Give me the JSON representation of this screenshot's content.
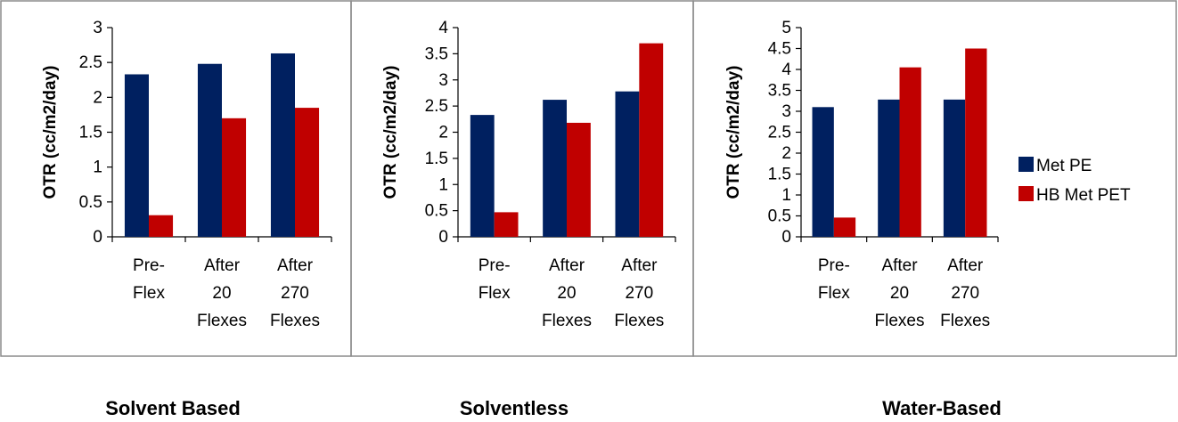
{
  "legend": [
    {
      "name": "Met PE",
      "color": "#002060"
    },
    {
      "name": "HB Met PET",
      "color": "#c00000"
    }
  ],
  "captions": [
    "Solvent Based",
    "Solventless",
    "Water-Based"
  ],
  "chart_data": [
    {
      "type": "bar",
      "title": "",
      "caption": "Solvent Based",
      "xlabel": "",
      "ylabel": "OTR (cc/m2/day)",
      "ylim": [
        0,
        3
      ],
      "yticks": [
        "0",
        "0.5",
        "1",
        "1.5",
        "2",
        "2.5",
        "3"
      ],
      "categories": [
        [
          "Pre-",
          "Flex"
        ],
        [
          "After",
          "20",
          "Flexes"
        ],
        [
          "After",
          "270",
          "Flexes"
        ]
      ],
      "series": [
        {
          "name": "Met PE",
          "color": "#002060",
          "values": [
            2.33,
            2.48,
            2.63
          ]
        },
        {
          "name": "HB Met PET",
          "color": "#c00000",
          "values": [
            0.31,
            1.7,
            1.85
          ]
        }
      ]
    },
    {
      "type": "bar",
      "title": "",
      "caption": "Solventless",
      "xlabel": "",
      "ylabel": "OTR (cc/m2/day)",
      "ylim": [
        0,
        4
      ],
      "yticks": [
        "0",
        "0.5",
        "1",
        "1.5",
        "2",
        "2.5",
        "3",
        "3.5",
        "4"
      ],
      "categories": [
        [
          "Pre-",
          "Flex"
        ],
        [
          "After",
          "20",
          "Flexes"
        ],
        [
          "After",
          "270",
          "Flexes"
        ]
      ],
      "series": [
        {
          "name": "Met PE",
          "color": "#002060",
          "values": [
            2.33,
            2.62,
            2.78
          ]
        },
        {
          "name": "HB Met PET",
          "color": "#c00000",
          "values": [
            0.47,
            2.18,
            3.7
          ]
        }
      ]
    },
    {
      "type": "bar",
      "title": "",
      "caption": "Water-Based",
      "xlabel": "",
      "ylabel": "OTR (cc/m2/day)",
      "ylim": [
        0,
        5
      ],
      "yticks": [
        "0",
        "0.5",
        "1",
        "1.5",
        "2",
        "2.5",
        "3",
        "3.5",
        "4",
        "4.5",
        "5"
      ],
      "categories": [
        [
          "Pre-",
          "Flex"
        ],
        [
          "After",
          "20",
          "Flexes"
        ],
        [
          "After",
          "270",
          "Flexes"
        ]
      ],
      "series": [
        {
          "name": "Met PE",
          "color": "#002060",
          "values": [
            3.1,
            3.28,
            3.28
          ]
        },
        {
          "name": "HB Met PET",
          "color": "#c00000",
          "values": [
            0.46,
            4.05,
            4.5
          ]
        }
      ]
    }
  ]
}
